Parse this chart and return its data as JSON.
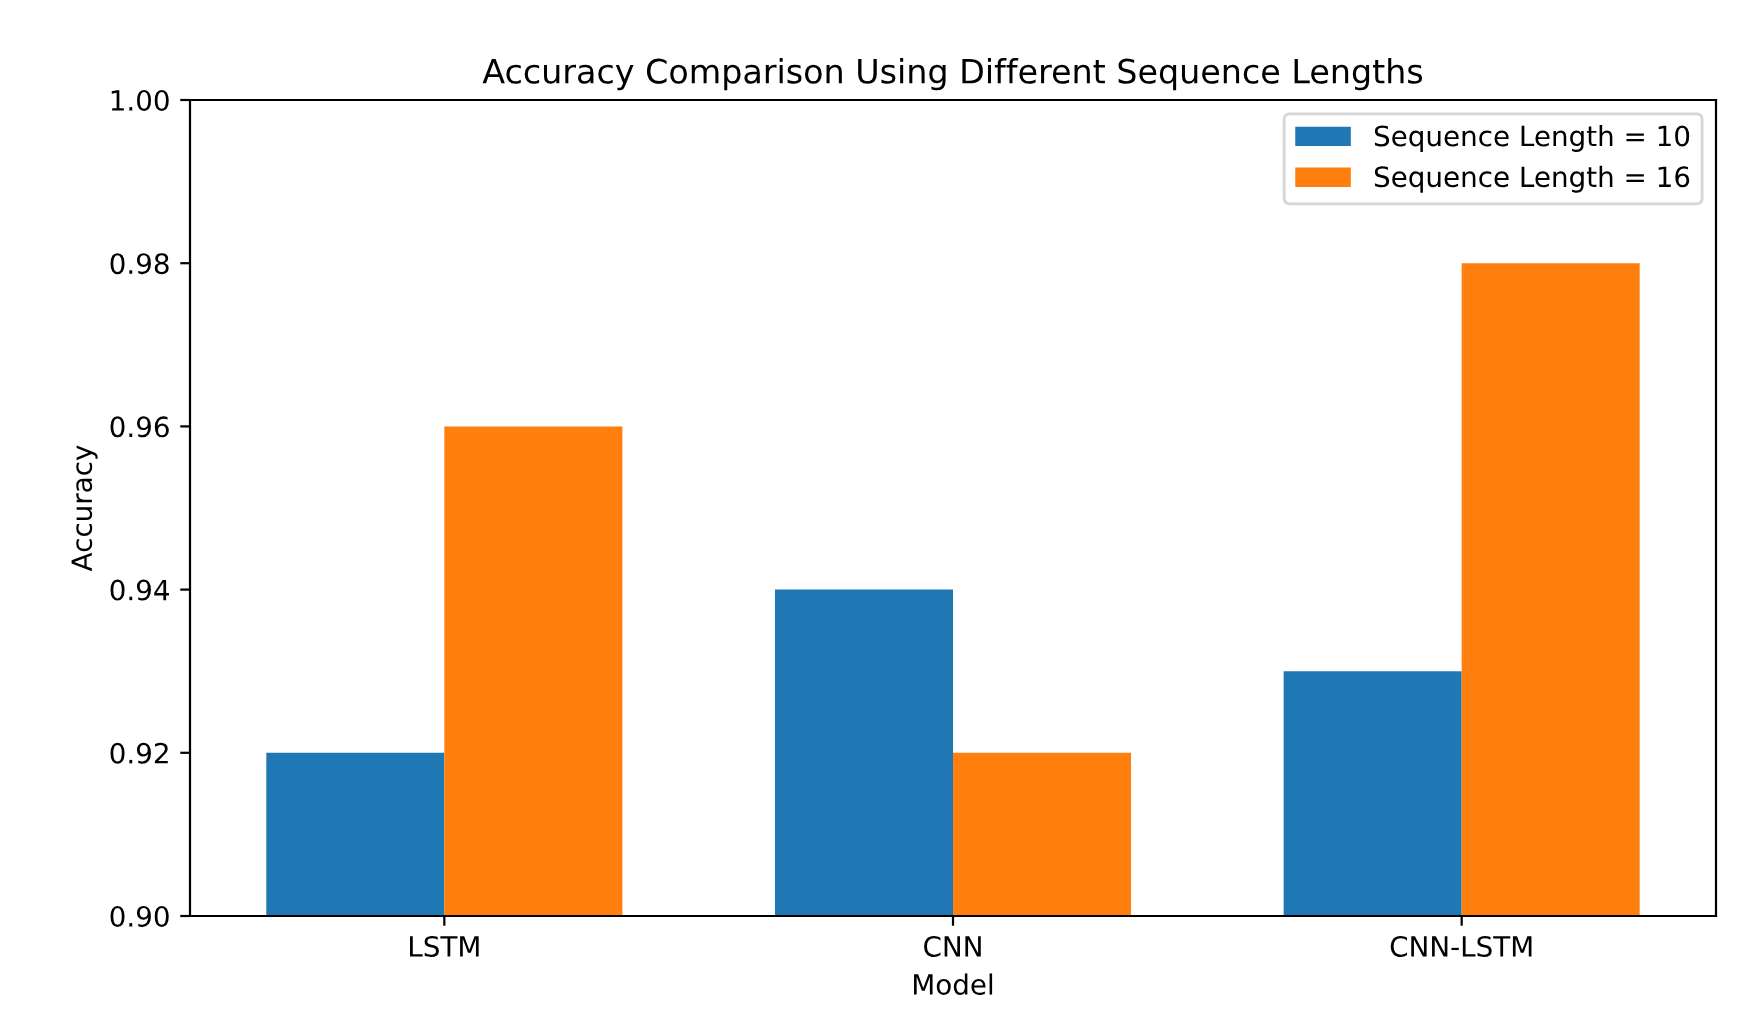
{
  "chart_data": {
    "type": "bar",
    "title": "Accuracy Comparison Using Different Sequence Lengths",
    "xlabel": "Model",
    "ylabel": "Accuracy",
    "categories": [
      "LSTM",
      "CNN",
      "CNN-LSTM"
    ],
    "series": [
      {
        "name": "Sequence Length = 10",
        "color": "#1f77b4",
        "values": [
          0.92,
          0.94,
          0.93
        ]
      },
      {
        "name": "Sequence Length = 16",
        "color": "#ff7f0e",
        "values": [
          0.96,
          0.92,
          0.98
        ]
      }
    ],
    "ylim": [
      0.9,
      1.0
    ],
    "yticks": [
      {
        "value": 0.9,
        "label": "0.90"
      },
      {
        "value": 0.92,
        "label": "0.92"
      },
      {
        "value": 0.94,
        "label": "0.94"
      },
      {
        "value": 0.96,
        "label": "0.96"
      },
      {
        "value": 0.98,
        "label": "0.98"
      },
      {
        "value": 1.0,
        "label": "1.00"
      }
    ],
    "legend": "top right",
    "grid": false
  }
}
